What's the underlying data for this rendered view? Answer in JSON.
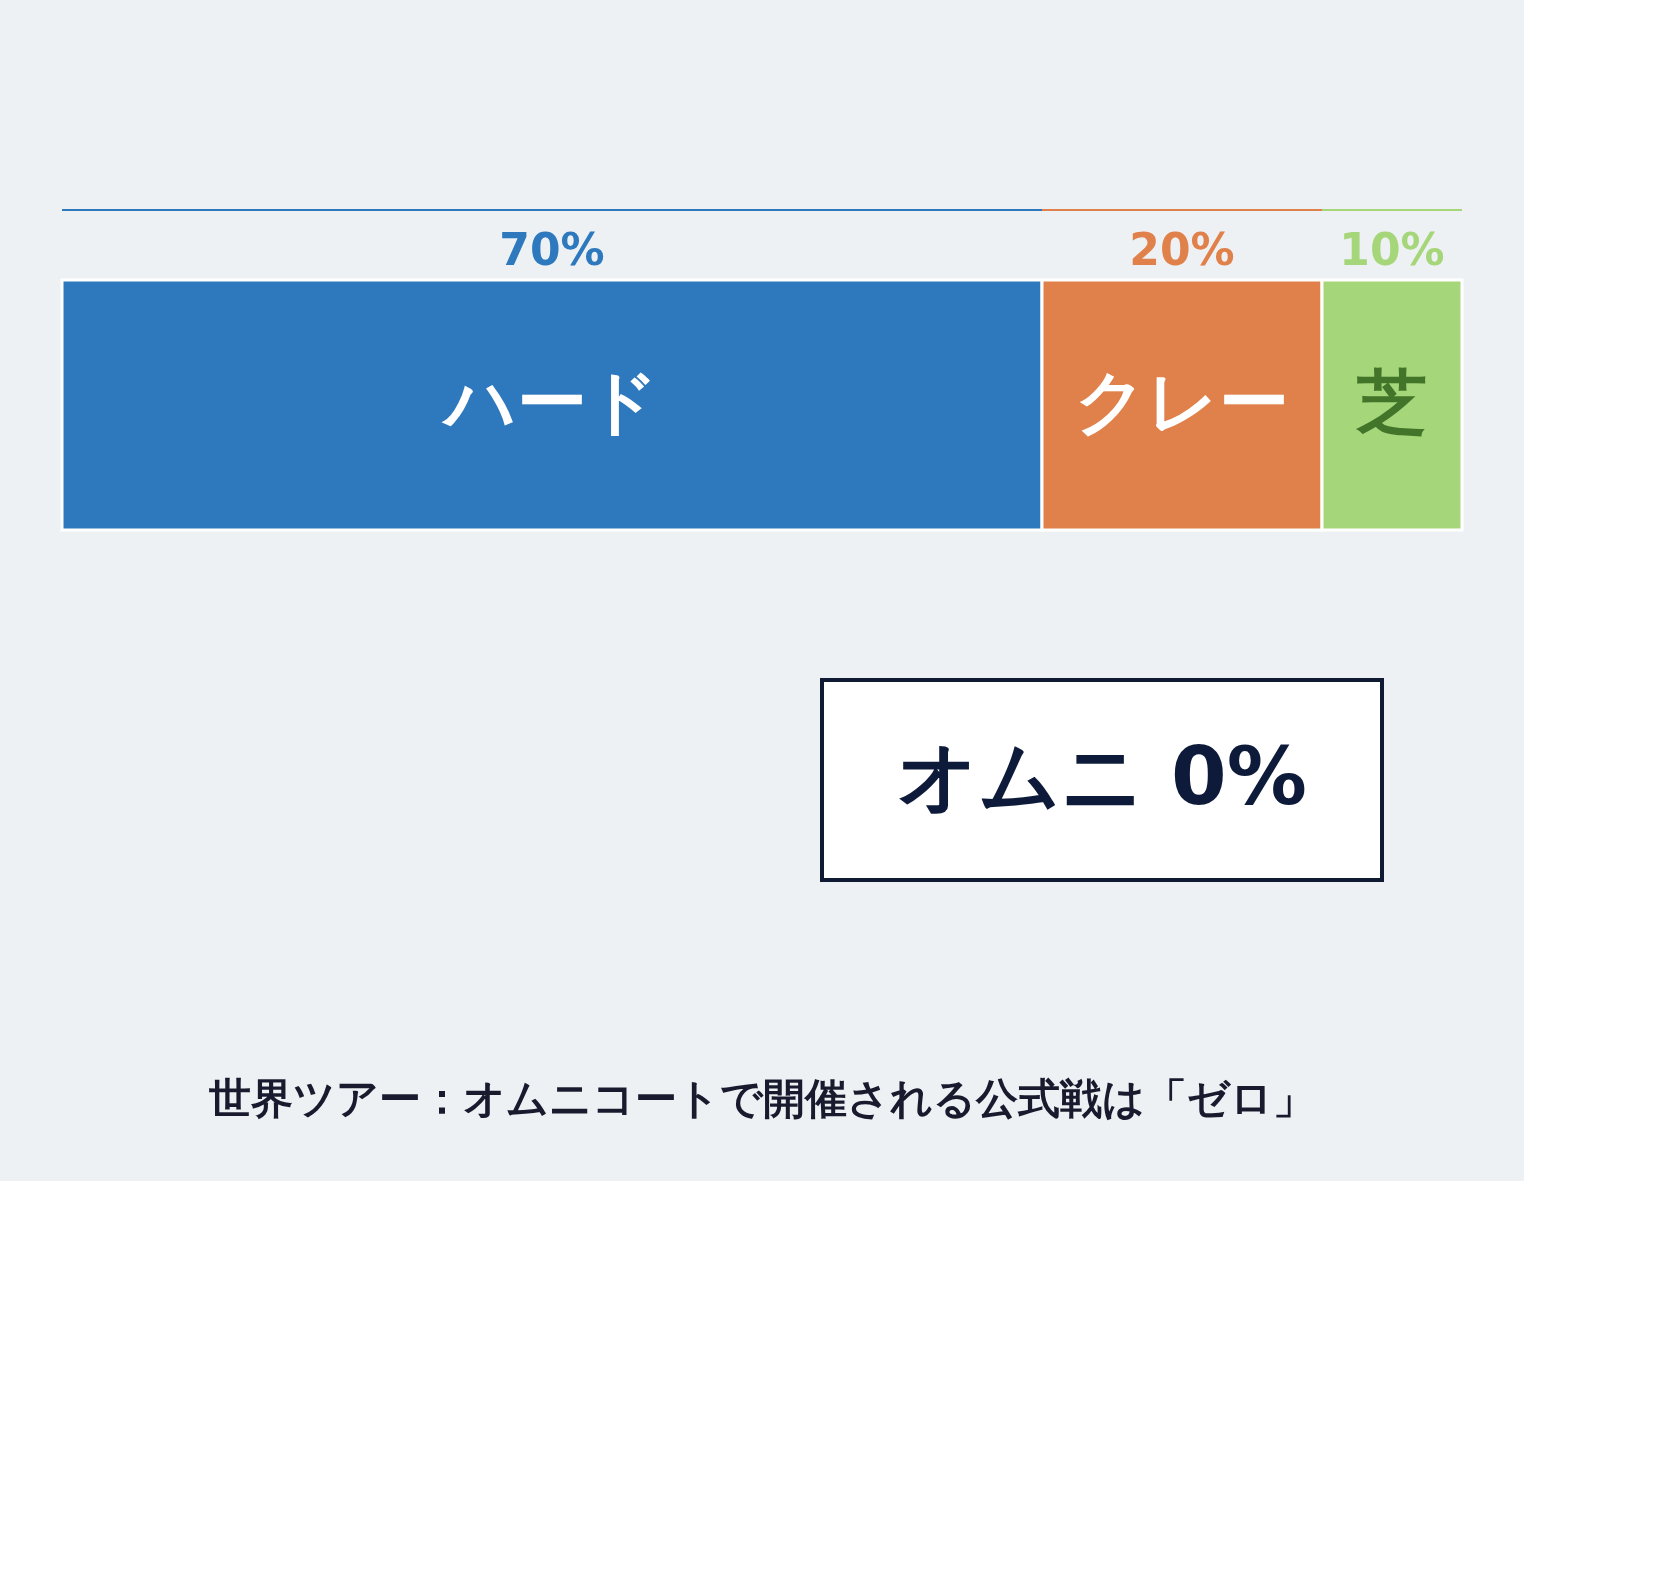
{
  "chart_data": {
    "type": "bar",
    "orientation": "horizontal",
    "stacked": true,
    "title": "世界ツアー：オムニコートで開催される公式戦は「ゼロ」",
    "categories": [
      null
    ],
    "series": [
      {
        "name": "ハード",
        "color": "#2e78bd",
        "values": [
          70
        ],
        "value_labels": [
          "70%"
        ]
      },
      {
        "name": "クレー",
        "color": "#e0804a",
        "values": [
          20
        ],
        "value_labels": [
          "20%"
        ]
      },
      {
        "name": "芝",
        "color": "#a6d67a",
        "values": [
          10
        ],
        "value_labels": [
          "10%"
        ]
      }
    ],
    "tick_labels": false,
    "annotations": [
      "オムニ 0%"
    ]
  }
}
